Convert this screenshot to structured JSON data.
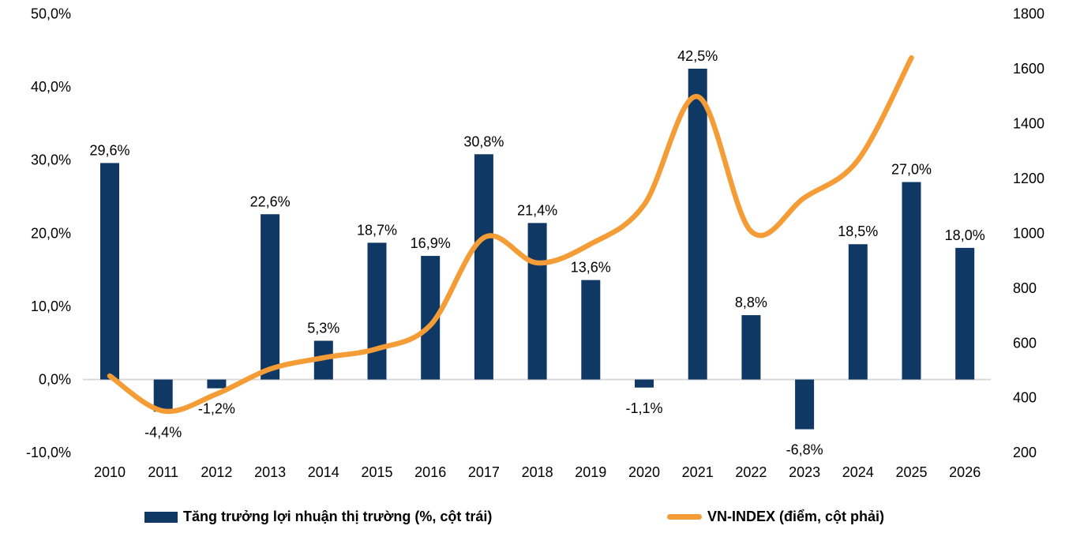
{
  "chart_data": {
    "type": "bar",
    "subtype": "combo-bar-line-dual-axis",
    "title": "",
    "xlabel": "",
    "ylabel_left": "",
    "ylabel_right": "",
    "grid": "zero-line-only",
    "legend_position": "bottom",
    "categories": [
      "2010",
      "2011",
      "2012",
      "2013",
      "2014",
      "2015",
      "2016",
      "2017",
      "2018",
      "2019",
      "2020",
      "2021",
      "2022",
      "2023",
      "2024",
      "2025",
      "2026"
    ],
    "series": [
      {
        "name": "Tăng trưởng lợi nhuận thị trường (%, cột trái)",
        "type": "bar",
        "axis": "left",
        "color": "#0f3864",
        "values": [
          29.6,
          -4.4,
          -1.2,
          22.6,
          5.3,
          18.7,
          16.9,
          30.8,
          21.4,
          13.6,
          -1.1,
          42.5,
          8.8,
          -6.8,
          18.5,
          27.0,
          18.0
        ],
        "labels": [
          "29,6%",
          "-4,4%",
          "-1,2%",
          "22,6%",
          "5,3%",
          "18,7%",
          "16,9%",
          "30,8%",
          "21,4%",
          "13,6%",
          "-1,1%",
          "42,5%",
          "8,8%",
          "-6,8%",
          "18,5%",
          "27,0%",
          "18,0%"
        ]
      },
      {
        "name": "VN-INDEX (điểm, cột phải)",
        "type": "line",
        "axis": "right",
        "color": "#f49d36",
        "values": [
          480,
          352,
          414,
          505,
          546,
          579,
          665,
          984,
          892,
          961,
          1104,
          1498,
          1007,
          1130,
          1267,
          1640
        ]
      }
    ],
    "left_axis": {
      "min": -10,
      "max": 50,
      "tick_values": [
        50,
        40,
        30,
        20,
        10,
        0,
        -10
      ],
      "tick_labels": [
        "50,0%",
        "40,0%",
        "30,0%",
        "20,0%",
        "10,0%",
        "0,0%",
        "-10,0%"
      ]
    },
    "right_axis": {
      "min": 200,
      "max": 1800,
      "tick_values": [
        1800,
        1600,
        1400,
        1200,
        1000,
        800,
        600,
        400,
        200
      ],
      "tick_labels": [
        "1800",
        "1600",
        "1400",
        "1200",
        "1000",
        "800",
        "600",
        "400",
        "200"
      ]
    },
    "legend": [
      {
        "label": "Tăng trưởng lợi nhuận thị trường (%, cột trái)",
        "swatch": "bar"
      },
      {
        "label": "VN-INDEX  (điểm, cột phải)",
        "swatch": "line"
      }
    ],
    "colors": {
      "bar": "#0f3864",
      "line": "#f49d36",
      "zero_line": "#d9d9d9",
      "text": "#000000",
      "background": "#ffffff"
    }
  }
}
